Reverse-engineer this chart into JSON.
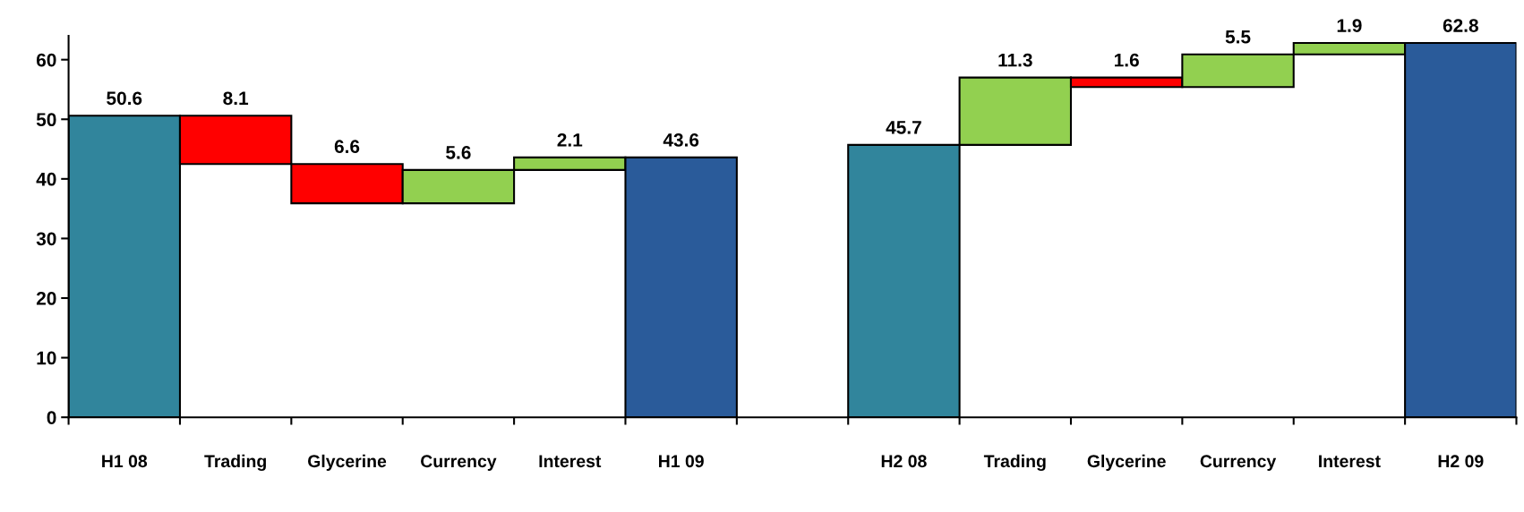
{
  "chart_data": {
    "type": "bar",
    "categories": [
      "H1 08",
      "Trading",
      "Glycerine",
      "Currency",
      "Interest",
      "H1 09",
      null,
      "H2 08",
      "Trading",
      "Glycerine",
      "Currency",
      "Interest",
      "H2 09"
    ],
    "values": [
      50.6,
      -8.1,
      -6.6,
      5.6,
      2.1,
      43.6,
      null,
      45.7,
      11.3,
      -1.6,
      5.5,
      1.9,
      62.8
    ],
    "base": [
      0,
      50.6,
      42.5,
      35.9,
      41.5,
      0,
      null,
      0,
      45.7,
      57.0,
      55.4,
      60.9,
      0
    ],
    "colors": [
      "#31859c",
      "#ff0000",
      "#ff0000",
      "#92d050",
      "#92d050",
      "#2a5b9a",
      null,
      "#31859c",
      "#92d050",
      "#ff0000",
      "#92d050",
      "#92d050",
      "#2a5b9a"
    ],
    "value_labels": [
      "50.6",
      "8.1",
      "6.6",
      "5.6",
      "2.1",
      "43.6",
      null,
      "45.7",
      "11.3",
      "1.6",
      "5.5",
      "1.9",
      "62.8"
    ],
    "ylim": [
      0,
      64
    ],
    "yticks": [
      0,
      10,
      20,
      30,
      40,
      50,
      60
    ],
    "grid": false,
    "legend": false
  }
}
